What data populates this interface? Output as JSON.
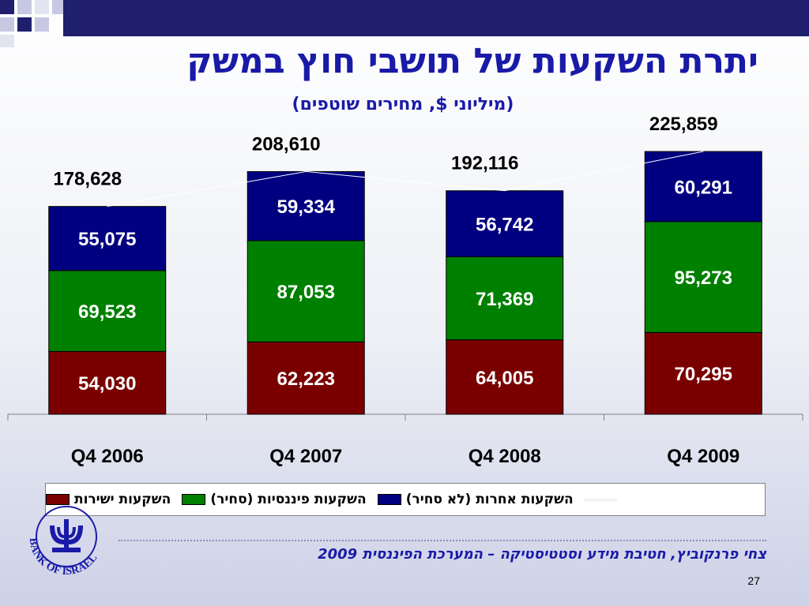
{
  "slide": {
    "title": "יתרת השקעות של תושבי חוץ במשק",
    "subtitle": "(מיליוני $, מחירים שוטפים)",
    "footer": "צחי פרנקוביץ, חטיבת מידע וסטטיסטיקה – המערכת הפיננסית 2009",
    "page_number": "27",
    "logo_text": "BANK OF ISRAEL"
  },
  "chart_data": {
    "type": "bar",
    "stacked": true,
    "categories": [
      "Q4 2006",
      "Q4 2007",
      "Q4 2008",
      "Q4 2009"
    ],
    "series": [
      {
        "name": "השקעות ישירות",
        "color": "#7a0000",
        "values": [
          54030,
          62223,
          64005,
          70295
        ],
        "labels": [
          "54,030",
          "62,223",
          "64,005",
          "70,295"
        ]
      },
      {
        "name": "השקעות פיננסיות (סחיר)",
        "color": "#008000",
        "values": [
          69523,
          87053,
          71369,
          95273
        ],
        "labels": [
          "69,523",
          "87,053",
          "71,369",
          "95,273"
        ]
      },
      {
        "name": "השקעות אחרות (לא סחיר)",
        "color": "#000080",
        "values": [
          55075,
          59334,
          56742,
          60291
        ],
        "labels": [
          "55,075",
          "59,334",
          "56,742",
          "60,291"
        ]
      }
    ],
    "totals": [
      178628,
      208610,
      192116,
      225859
    ],
    "total_labels": [
      "178,628",
      "208,610",
      "192,116",
      "225,859"
    ],
    "ylim": [
      0,
      225859
    ],
    "grid": false,
    "legend_position": "bottom"
  }
}
